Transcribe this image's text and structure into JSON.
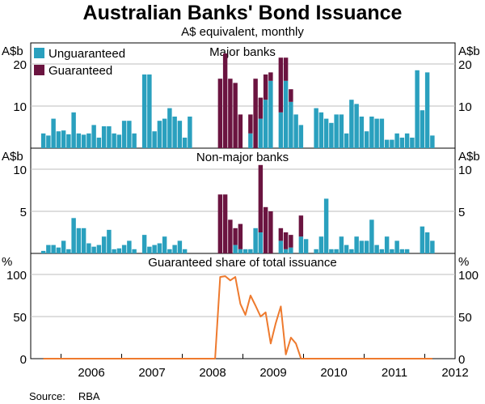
{
  "title": "Australian Banks' Bond Issuance",
  "subtitle": "A$ equivalent, monthly",
  "source": {
    "label": "Source:",
    "value": "RBA"
  },
  "colors": {
    "unguaranteed": "#2aa0be",
    "guaranteed": "#6b1440",
    "share_line": "#ee7a2e"
  },
  "chart_data": [
    {
      "type": "bar",
      "stacked": true,
      "title": "Major banks",
      "ylabel": "A$b",
      "ylim": [
        0,
        25
      ],
      "yticks": [
        10,
        20
      ],
      "legend": {
        "placement": "top-left",
        "entries": [
          "Unguaranteed",
          "Guaranteed"
        ]
      },
      "x_start": "2005-09",
      "series": [
        {
          "name": "Unguaranteed",
          "values": [
            3.5,
            3.0,
            7.0,
            4.0,
            4.2,
            3.3,
            8.5,
            3.5,
            3.2,
            3.5,
            5.5,
            2.5,
            5.2,
            5.2,
            3.5,
            3.2,
            6.5,
            6.5,
            3.5,
            0,
            17.5,
            17.5,
            4.0,
            6.5,
            7.0,
            9.5,
            7.5,
            6.5,
            2.5,
            7.5,
            0,
            0,
            0,
            0,
            0,
            0,
            0,
            0,
            0,
            0,
            0,
            3.5,
            0,
            7.0,
            11.5,
            16.0,
            0,
            8.5,
            16.0,
            11.0,
            8.0,
            5.5,
            0,
            0,
            9.5,
            8.5,
            7.0,
            6.0,
            8.0,
            8.0,
            3.5,
            11.5,
            10.5,
            7.5,
            4.0,
            7.5,
            7.0,
            7.0,
            2.0,
            2.0,
            3.5,
            2.5,
            3.5,
            2.5,
            18.5,
            9.0,
            18.0,
            3.0
          ]
        },
        {
          "name": "Guaranteed",
          "values": [
            0,
            0,
            0,
            0,
            0,
            0,
            0,
            0,
            0,
            0,
            0,
            0,
            0,
            0,
            0,
            0,
            0,
            0,
            0,
            0,
            0,
            0,
            0,
            0,
            0,
            0,
            0,
            0,
            0,
            0,
            0,
            0,
            0,
            0,
            0,
            16.5,
            22.5,
            16.5,
            15.5,
            8.0,
            0,
            4.5,
            16.5,
            5.0,
            6.0,
            2.0,
            0,
            13.0,
            5.5,
            3.0,
            0,
            0,
            0,
            0,
            0,
            0,
            0,
            0,
            0,
            0,
            0,
            0,
            0,
            0,
            0,
            0,
            0,
            0,
            0,
            0,
            0,
            0,
            0,
            0,
            0,
            0,
            0,
            0
          ]
        }
      ]
    },
    {
      "type": "bar",
      "stacked": true,
      "title": "Non-major banks",
      "ylabel": "A$b",
      "ylim": [
        0,
        12.5
      ],
      "yticks": [
        5,
        10
      ],
      "x_start": "2005-09",
      "series": [
        {
          "name": "Unguaranteed",
          "values": [
            0.3,
            1.0,
            1.0,
            0.7,
            1.5,
            0.5,
            4.2,
            3.0,
            3.0,
            1.2,
            0.8,
            1.0,
            2.0,
            2.8,
            0.5,
            0.6,
            1.0,
            1.5,
            0.5,
            0,
            2.2,
            0.8,
            1.0,
            1.2,
            2.0,
            0.5,
            1.0,
            1.5,
            0.5,
            0,
            0,
            0,
            0,
            0,
            0,
            0,
            0,
            0,
            1.0,
            0.5,
            0.5,
            0.5,
            3.0,
            2.5,
            0,
            0,
            0,
            1.5,
            0.5,
            0.7,
            0,
            2.0,
            1.7,
            0,
            0.5,
            2.0,
            6.5,
            0.5,
            0.5,
            2.0,
            1.0,
            0.5,
            2.0,
            1.5,
            1.5,
            4.0,
            1.0,
            0.5,
            2.0,
            0.5,
            1.5,
            0.5,
            0.5,
            0,
            0,
            3.2,
            2.5,
            1.5
          ]
        },
        {
          "name": "Guaranteed",
          "values": [
            0,
            0,
            0,
            0,
            0,
            0,
            0,
            0,
            0,
            0,
            0,
            0,
            0,
            0,
            0,
            0,
            0,
            0,
            0,
            0,
            0,
            0,
            0,
            0,
            0,
            0,
            0,
            0,
            0,
            0,
            0,
            0,
            0,
            0,
            0,
            7.0,
            7.0,
            4.0,
            2.0,
            3.0,
            0,
            0,
            0,
            8.0,
            5.5,
            5.0,
            0,
            1.5,
            2.0,
            1.5,
            0,
            2.5,
            0,
            0,
            0,
            0,
            0,
            0,
            0,
            0,
            0,
            0,
            0,
            0,
            0,
            0,
            0,
            0,
            0,
            0,
            0,
            0,
            0,
            0,
            0,
            0,
            0,
            0
          ]
        }
      ]
    },
    {
      "type": "line",
      "title": "Guaranteed share of total issuance",
      "ylabel": "%",
      "ylim": [
        0,
        125
      ],
      "yticks": [
        0,
        50,
        100
      ],
      "x_start": "2005-09",
      "series": [
        {
          "name": "Guaranteed share",
          "values": [
            0,
            0,
            0,
            0,
            0,
            0,
            0,
            0,
            0,
            0,
            0,
            0,
            0,
            0,
            0,
            0,
            0,
            0,
            0,
            0,
            0,
            0,
            0,
            0,
            0,
            0,
            0,
            0,
            0,
            0,
            0,
            0,
            0,
            0,
            0,
            97,
            98,
            93,
            97,
            65,
            52,
            75,
            63,
            50,
            55,
            18,
            42,
            62,
            5,
            25,
            18,
            0,
            0,
            0,
            0,
            0,
            0,
            0,
            0,
            0,
            0,
            0,
            0,
            0,
            0,
            0,
            0,
            0,
            0,
            0,
            0,
            0,
            0,
            0,
            0,
            0,
            0,
            0
          ]
        }
      ]
    }
  ],
  "x_axis": {
    "range": [
      "2005-07",
      "2012-07"
    ],
    "tick_labels": [
      "2006",
      "2007",
      "2008",
      "2009",
      "2010",
      "2011",
      "2012"
    ]
  }
}
